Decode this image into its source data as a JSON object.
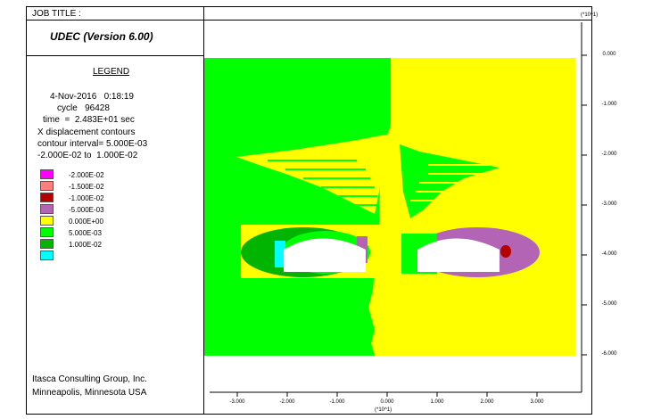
{
  "header": {
    "job_title": "JOB TITLE :",
    "program": "UDEC (Version 6.00)"
  },
  "legend": {
    "title": "LEGEND",
    "date_line": "4-Nov-2016   0:18:19",
    "cycle_line": "cycle   96428",
    "time_line": "time  =  2.483E+01 sec",
    "contour_desc": "X displacement contours",
    "interval_line": "contour interval= 5.000E-03",
    "range_line": "-2.000E-02 to  1.000E-02",
    "items": [
      {
        "label": "-2.000E-02",
        "color": "#ff00ff"
      },
      {
        "label": "-1.500E-02",
        "color": "#ff8080"
      },
      {
        "label": "-1.000E-02",
        "color": "#b40000"
      },
      {
        "label": "-5.000E-03",
        "color": "#b464b4"
      },
      {
        "label": "0.000E+00",
        "color": "#ffff00"
      },
      {
        "label": "5.000E-03",
        "color": "#00ff00"
      },
      {
        "label": "1.000E-02",
        "color": "#00b400"
      },
      {
        "label": "",
        "color": "#00ffff"
      }
    ]
  },
  "footer": {
    "company": "Itasca Consulting Group, Inc.",
    "location": "Minneapolis, Minnesota  USA"
  },
  "plot": {
    "y_scale": "(*10^1)",
    "x_scale": "(*10^1)",
    "y_ticks": [
      "0.000",
      "-1.000",
      "-2.000",
      "-3.000",
      "-4.000",
      "-5.000",
      "-6.000"
    ],
    "x_ticks": [
      "-3.000",
      "-2.000",
      "-1.000",
      "0.000",
      "1.000",
      "2.000",
      "3.000"
    ]
  }
}
